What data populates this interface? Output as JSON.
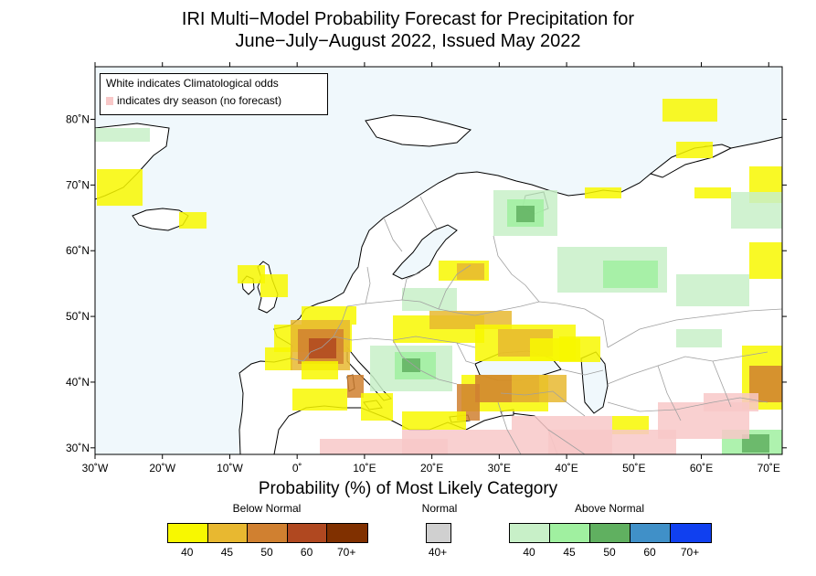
{
  "title_line1": "IRI Multi−Model Probability Forecast for Precipitation for",
  "title_line2": "June−July−August 2022, Issued May 2022",
  "notes": {
    "climatological": "White indicates Climatological odds",
    "dry_season": "indicates dry season (no forecast)"
  },
  "axes": {
    "lon_labels": [
      "30˚W",
      "20˚W",
      "10˚W",
      "0˚",
      "10˚E",
      "20˚E",
      "30˚E",
      "40˚E",
      "50˚E",
      "60˚E",
      "70˚E"
    ],
    "lat_labels": [
      "80˚N",
      "70˚N",
      "60˚N",
      "50˚N",
      "40˚N",
      "30˚N"
    ],
    "lon_range": [
      -30,
      72
    ],
    "lat_range": [
      29,
      88
    ]
  },
  "legend": {
    "title": "Probability (%) of Most Likely Category",
    "below": {
      "label": "Below Normal",
      "ticks": [
        "40",
        "45",
        "50",
        "60",
        "70+"
      ],
      "colors": [
        "#f8f800",
        "#e8b830",
        "#d08030",
        "#b04820",
        "#803000"
      ]
    },
    "normal": {
      "label": "Normal",
      "ticks": [
        "40+"
      ],
      "colors": [
        "#d0d0d0"
      ]
    },
    "above": {
      "label": "Above Normal",
      "ticks": [
        "40",
        "45",
        "50",
        "60",
        "70+"
      ],
      "colors": [
        "#c8f0c8",
        "#a0f0a0",
        "#60b060",
        "#4090c8",
        "#1040f0"
      ]
    }
  },
  "colors": {
    "ocean": "#f0f8fc",
    "land": "#ffffff",
    "dry_season": "#f8c8c8",
    "border": "#a0a0a0",
    "coast": "#000000"
  }
}
